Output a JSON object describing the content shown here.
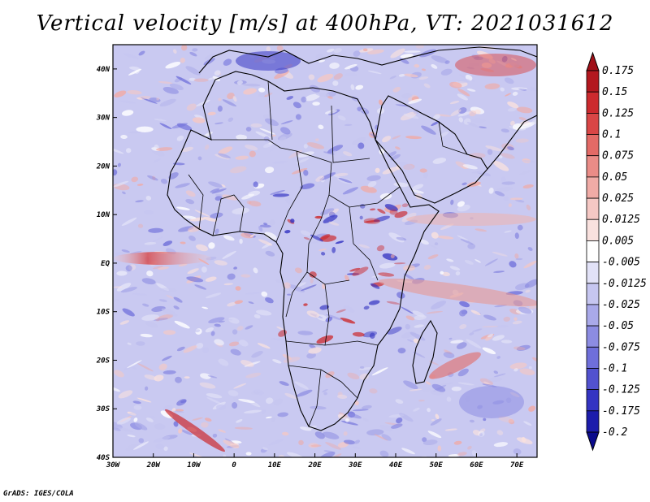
{
  "title": "Vertical velocity [m/s] at 400hPa, VT: 2021031612",
  "credit": "GrADS: IGES/COLA",
  "map": {
    "variable": "Vertical velocity",
    "units": "m/s",
    "level": "400hPa",
    "valid_time": "2021031612",
    "lat_labels": [
      "40N",
      "30N",
      "20N",
      "10N",
      "EQ",
      "10S",
      "20S",
      "30S",
      "40S"
    ],
    "lon_labels": [
      "30W",
      "20W",
      "10W",
      "0",
      "10E",
      "20E",
      "30E",
      "40E",
      "50E",
      "60E",
      "70E"
    ],
    "colorbar_labels": [
      "0.175",
      "0.15",
      "0.125",
      "0.1",
      "0.075",
      "0.05",
      "0.025",
      "0.0125",
      "0.005",
      "-0.005",
      "-0.0125",
      "-0.025",
      "-0.05",
      "-0.075",
      "-0.1",
      "-0.125",
      "-0.175",
      "-0.2"
    ],
    "colorbar_colors": [
      "#b3181f",
      "#cc2a2e",
      "#d94646",
      "#e36a66",
      "#ea8c87",
      "#f0aba6",
      "#f5c8c4",
      "#f9e1de",
      "#ffffff",
      "#e2e2f7",
      "#c6c6f0",
      "#a9a9e9",
      "#8c8ce2",
      "#6f6fda",
      "#5252cf",
      "#3434c2",
      "#1c1cab"
    ],
    "colors": {
      "frame": "#000000",
      "land_outline": "#000000",
      "ocean_bg": "#c6c6f0"
    }
  }
}
